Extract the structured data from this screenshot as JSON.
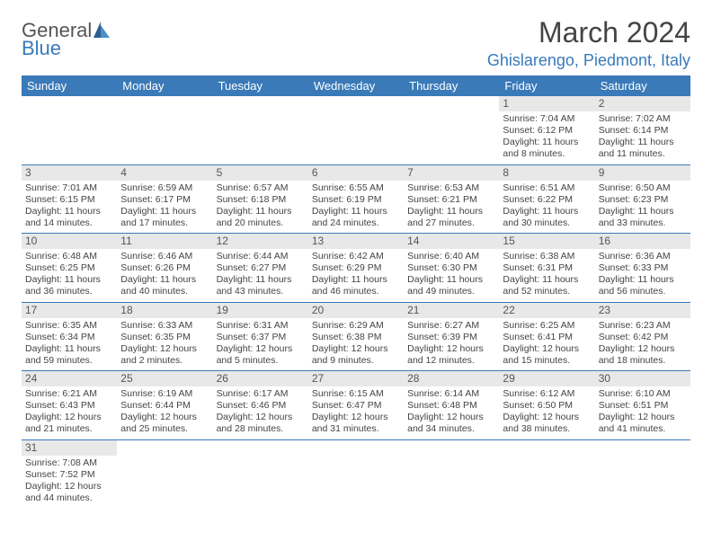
{
  "logo": {
    "text1": "General",
    "text2": "Blue"
  },
  "title": "March 2024",
  "location": "Ghislarengo, Piedmont, Italy",
  "colors": {
    "header_bg": "#3a7ab8",
    "header_fg": "#ffffff",
    "daynum_bg": "#e8e8e8",
    "border": "#3a7ab8",
    "title_fg": "#444444",
    "location_fg": "#3a7ab8",
    "body_fg": "#444444",
    "page_bg": "#ffffff"
  },
  "typography": {
    "title_fontsize": 32,
    "location_fontsize": 18,
    "header_fontsize": 13,
    "cell_fontsize": 10.5,
    "daynum_fontsize": 12
  },
  "weekdays": [
    "Sunday",
    "Monday",
    "Tuesday",
    "Wednesday",
    "Thursday",
    "Friday",
    "Saturday"
  ],
  "weeks": [
    [
      null,
      null,
      null,
      null,
      null,
      {
        "n": "1",
        "sr": "7:04 AM",
        "ss": "6:12 PM",
        "dl": "11 hours and 8 minutes."
      },
      {
        "n": "2",
        "sr": "7:02 AM",
        "ss": "6:14 PM",
        "dl": "11 hours and 11 minutes."
      }
    ],
    [
      {
        "n": "3",
        "sr": "7:01 AM",
        "ss": "6:15 PM",
        "dl": "11 hours and 14 minutes."
      },
      {
        "n": "4",
        "sr": "6:59 AM",
        "ss": "6:17 PM",
        "dl": "11 hours and 17 minutes."
      },
      {
        "n": "5",
        "sr": "6:57 AM",
        "ss": "6:18 PM",
        "dl": "11 hours and 20 minutes."
      },
      {
        "n": "6",
        "sr": "6:55 AM",
        "ss": "6:19 PM",
        "dl": "11 hours and 24 minutes."
      },
      {
        "n": "7",
        "sr": "6:53 AM",
        "ss": "6:21 PM",
        "dl": "11 hours and 27 minutes."
      },
      {
        "n": "8",
        "sr": "6:51 AM",
        "ss": "6:22 PM",
        "dl": "11 hours and 30 minutes."
      },
      {
        "n": "9",
        "sr": "6:50 AM",
        "ss": "6:23 PM",
        "dl": "11 hours and 33 minutes."
      }
    ],
    [
      {
        "n": "10",
        "sr": "6:48 AM",
        "ss": "6:25 PM",
        "dl": "11 hours and 36 minutes."
      },
      {
        "n": "11",
        "sr": "6:46 AM",
        "ss": "6:26 PM",
        "dl": "11 hours and 40 minutes."
      },
      {
        "n": "12",
        "sr": "6:44 AM",
        "ss": "6:27 PM",
        "dl": "11 hours and 43 minutes."
      },
      {
        "n": "13",
        "sr": "6:42 AM",
        "ss": "6:29 PM",
        "dl": "11 hours and 46 minutes."
      },
      {
        "n": "14",
        "sr": "6:40 AM",
        "ss": "6:30 PM",
        "dl": "11 hours and 49 minutes."
      },
      {
        "n": "15",
        "sr": "6:38 AM",
        "ss": "6:31 PM",
        "dl": "11 hours and 52 minutes."
      },
      {
        "n": "16",
        "sr": "6:36 AM",
        "ss": "6:33 PM",
        "dl": "11 hours and 56 minutes."
      }
    ],
    [
      {
        "n": "17",
        "sr": "6:35 AM",
        "ss": "6:34 PM",
        "dl": "11 hours and 59 minutes."
      },
      {
        "n": "18",
        "sr": "6:33 AM",
        "ss": "6:35 PM",
        "dl": "12 hours and 2 minutes."
      },
      {
        "n": "19",
        "sr": "6:31 AM",
        "ss": "6:37 PM",
        "dl": "12 hours and 5 minutes."
      },
      {
        "n": "20",
        "sr": "6:29 AM",
        "ss": "6:38 PM",
        "dl": "12 hours and 9 minutes."
      },
      {
        "n": "21",
        "sr": "6:27 AM",
        "ss": "6:39 PM",
        "dl": "12 hours and 12 minutes."
      },
      {
        "n": "22",
        "sr": "6:25 AM",
        "ss": "6:41 PM",
        "dl": "12 hours and 15 minutes."
      },
      {
        "n": "23",
        "sr": "6:23 AM",
        "ss": "6:42 PM",
        "dl": "12 hours and 18 minutes."
      }
    ],
    [
      {
        "n": "24",
        "sr": "6:21 AM",
        "ss": "6:43 PM",
        "dl": "12 hours and 21 minutes."
      },
      {
        "n": "25",
        "sr": "6:19 AM",
        "ss": "6:44 PM",
        "dl": "12 hours and 25 minutes."
      },
      {
        "n": "26",
        "sr": "6:17 AM",
        "ss": "6:46 PM",
        "dl": "12 hours and 28 minutes."
      },
      {
        "n": "27",
        "sr": "6:15 AM",
        "ss": "6:47 PM",
        "dl": "12 hours and 31 minutes."
      },
      {
        "n": "28",
        "sr": "6:14 AM",
        "ss": "6:48 PM",
        "dl": "12 hours and 34 minutes."
      },
      {
        "n": "29",
        "sr": "6:12 AM",
        "ss": "6:50 PM",
        "dl": "12 hours and 38 minutes."
      },
      {
        "n": "30",
        "sr": "6:10 AM",
        "ss": "6:51 PM",
        "dl": "12 hours and 41 minutes."
      }
    ],
    [
      {
        "n": "31",
        "sr": "7:08 AM",
        "ss": "7:52 PM",
        "dl": "12 hours and 44 minutes."
      },
      null,
      null,
      null,
      null,
      null,
      null
    ]
  ],
  "labels": {
    "sunrise": "Sunrise:",
    "sunset": "Sunset:",
    "daylight": "Daylight:"
  }
}
